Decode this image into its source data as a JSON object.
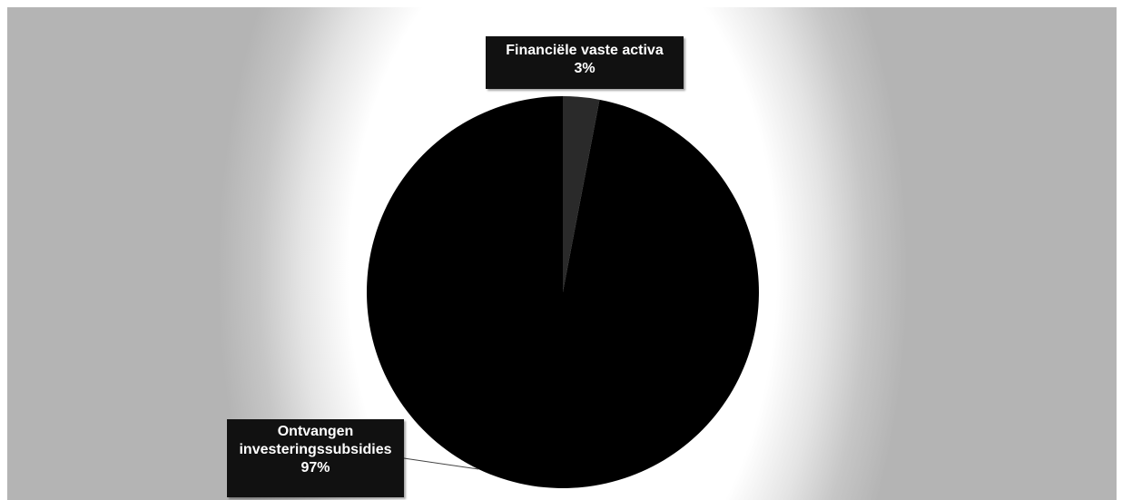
{
  "chart_data": {
    "type": "pie",
    "title": "",
    "categories": [
      "Financiële vaste activa",
      "Ontvangen investeringssubsidies"
    ],
    "values": [
      3,
      97
    ],
    "value_unit": "%",
    "labels": [
      {
        "name": "Financiële vaste activa",
        "percent": "3%"
      },
      {
        "name": "Ontvangen investeringssubsidies",
        "name_lines": [
          "Ontvangen",
          "investeringssubsidies"
        ],
        "percent": "97%"
      }
    ],
    "colors": [
      "#2a2a2a",
      "#000000"
    ],
    "legend": "none",
    "data_labels": "outside-with-leader-lines"
  }
}
